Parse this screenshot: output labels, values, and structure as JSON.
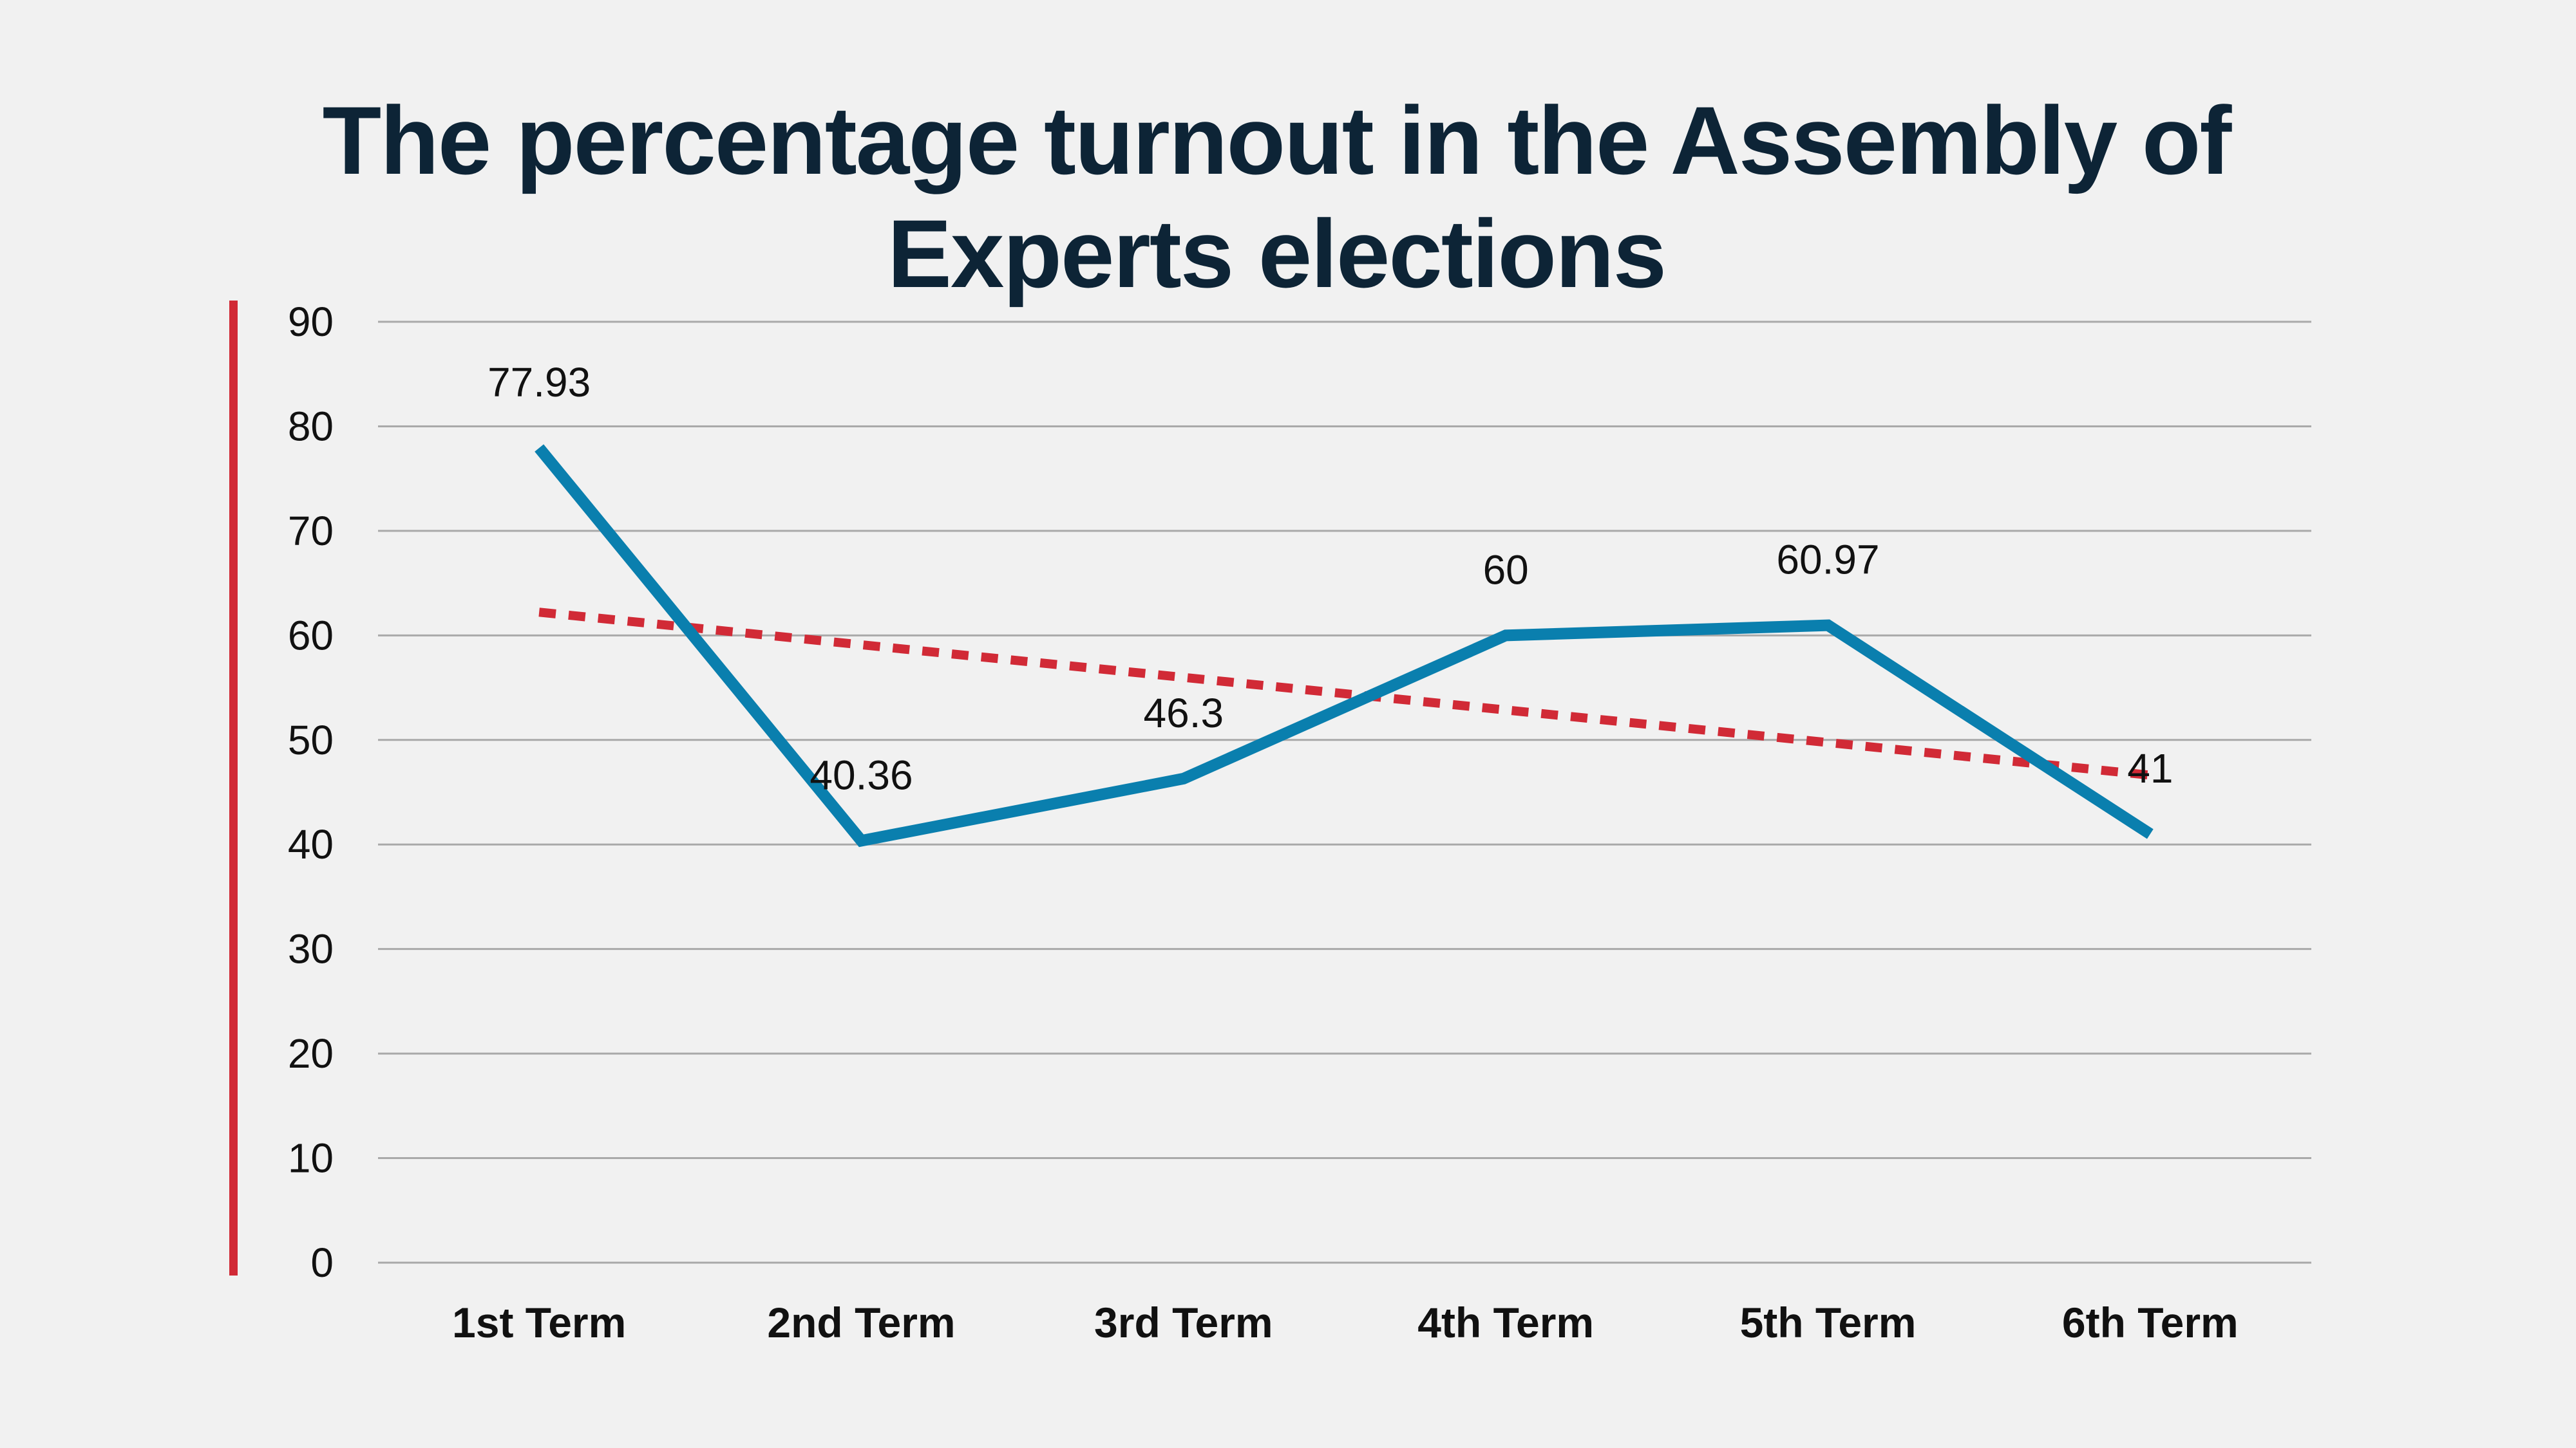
{
  "chart_data": {
    "type": "line",
    "title": "The percentage turnout in the Assembly of Experts elections",
    "categories": [
      "1st Term",
      "2nd Term",
      "3rd Term",
      "4th Term",
      "5th Term",
      "6th Term"
    ],
    "series": [
      {
        "values": [
          77.93,
          40.36,
          46.3,
          60,
          60.97,
          41
        ],
        "data_labels": [
          "77.93",
          "40.36",
          "46.3",
          "60",
          "60.97",
          "41"
        ],
        "color": "#0a7fae"
      }
    ],
    "trendline": {
      "type": "linear",
      "color": "#d12a36",
      "style": "dotted"
    },
    "yticks": [
      "0",
      "10",
      "20",
      "30",
      "40",
      "50",
      "60",
      "70",
      "80",
      "90"
    ],
    "ylim": [
      0,
      90
    ],
    "grid": true,
    "accent_color": "#d12a36"
  }
}
